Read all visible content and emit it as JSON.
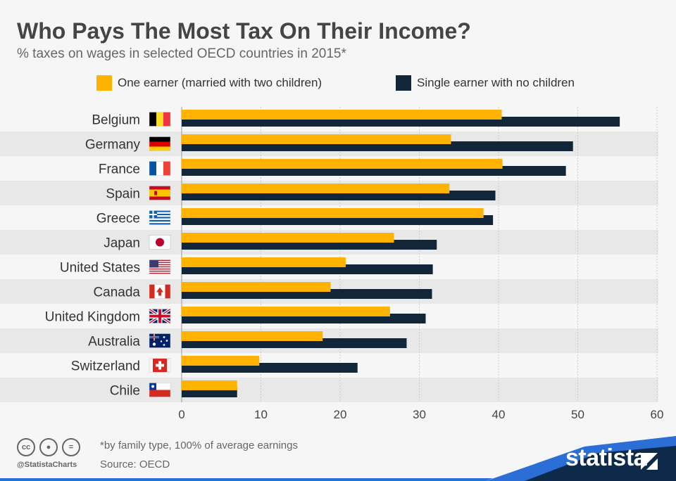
{
  "header": {
    "title": "Who Pays The Most Tax On Their Income?",
    "subtitle": "% taxes on wages in selected OECD countries in 2015*"
  },
  "legend": {
    "one_earner": "One earner (married with two children)",
    "single_earner": "Single earner with no children"
  },
  "colors": {
    "one_earner": "#ffb300",
    "single_earner": "#12263a",
    "band": "#e8e8e8",
    "banner": "#0d2a4a",
    "banner_accent": "#2b6fd6"
  },
  "chart_data": {
    "type": "bar",
    "orientation": "horizontal",
    "categories": [
      "Belgium",
      "Germany",
      "France",
      "Spain",
      "Greece",
      "Japan",
      "United States",
      "Canada",
      "United Kingdom",
      "Australia",
      "Switzerland",
      "Chile"
    ],
    "flags": [
      "flag-belgium-icon",
      "flag-germany-icon",
      "flag-france-icon",
      "flag-spain-icon",
      "flag-greece-icon",
      "flag-japan-icon",
      "flag-usa-icon",
      "flag-canada-icon",
      "flag-uk-icon",
      "flag-australia-icon",
      "flag-switzerland-icon",
      "flag-chile-icon"
    ],
    "series": [
      {
        "name": "One earner (married with two children)",
        "values": [
          40.4,
          34.0,
          40.5,
          33.8,
          38.1,
          26.8,
          20.7,
          18.8,
          26.3,
          17.8,
          9.8,
          7.0
        ]
      },
      {
        "name": "Single earner with no children",
        "values": [
          55.3,
          49.4,
          48.5,
          39.6,
          39.3,
          32.2,
          31.7,
          31.6,
          30.8,
          28.4,
          22.2,
          7.0
        ]
      }
    ],
    "xlim": [
      0,
      60
    ],
    "xticks": [
      0,
      10,
      20,
      30,
      40,
      50,
      60
    ],
    "grid": true,
    "legend_position": "top"
  },
  "footer": {
    "note": "*by family type, 100% of average earnings",
    "source": "Source: OECD",
    "handle": "@StatistaCharts",
    "brand": "statista",
    "cc_icons": [
      "creative-commons-icon",
      "attribution-icon",
      "no-derivatives-icon"
    ]
  }
}
